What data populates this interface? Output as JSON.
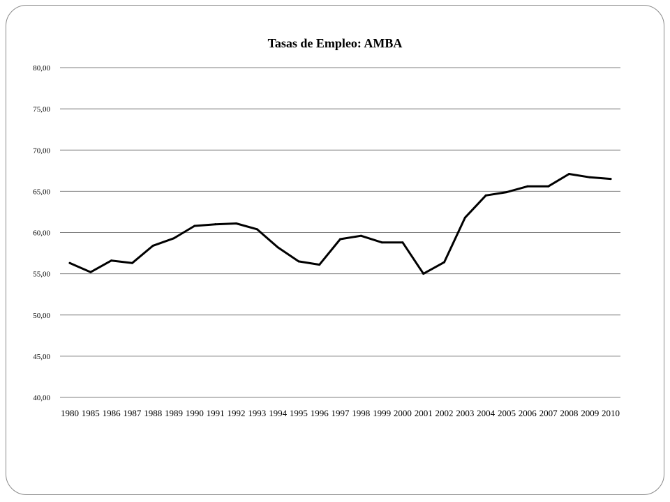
{
  "chart_data": {
    "type": "line",
    "title": "Tasas de Empleo: AMBA",
    "xlabel": "",
    "ylabel": "",
    "categories": [
      "1980",
      "1985",
      "1986",
      "1987",
      "1988",
      "1989",
      "1990",
      "1991",
      "1992",
      "1993",
      "1994",
      "1995",
      "1996",
      "1997",
      "1998",
      "1999",
      "2000",
      "2001",
      "2002",
      "2003",
      "2004",
      "2005",
      "2006",
      "2007",
      "2008",
      "2009",
      "2010"
    ],
    "series": [
      {
        "values": [
          56.3,
          55.2,
          56.6,
          56.3,
          58.4,
          59.3,
          60.8,
          61.0,
          61.1,
          60.4,
          58.2,
          56.5,
          56.1,
          59.2,
          59.6,
          58.8,
          58.8,
          55.0,
          56.4,
          61.8,
          64.5,
          64.9,
          65.6,
          65.6,
          67.1,
          66.7,
          66.5
        ],
        "color": "#000000"
      }
    ],
    "ylim": [
      40,
      80
    ],
    "yticks": [
      "40,00",
      "45,00",
      "50,00",
      "55,00",
      "60,00",
      "65,00",
      "70,00",
      "75,00",
      "80,00"
    ],
    "grid": true,
    "legend": "none"
  }
}
